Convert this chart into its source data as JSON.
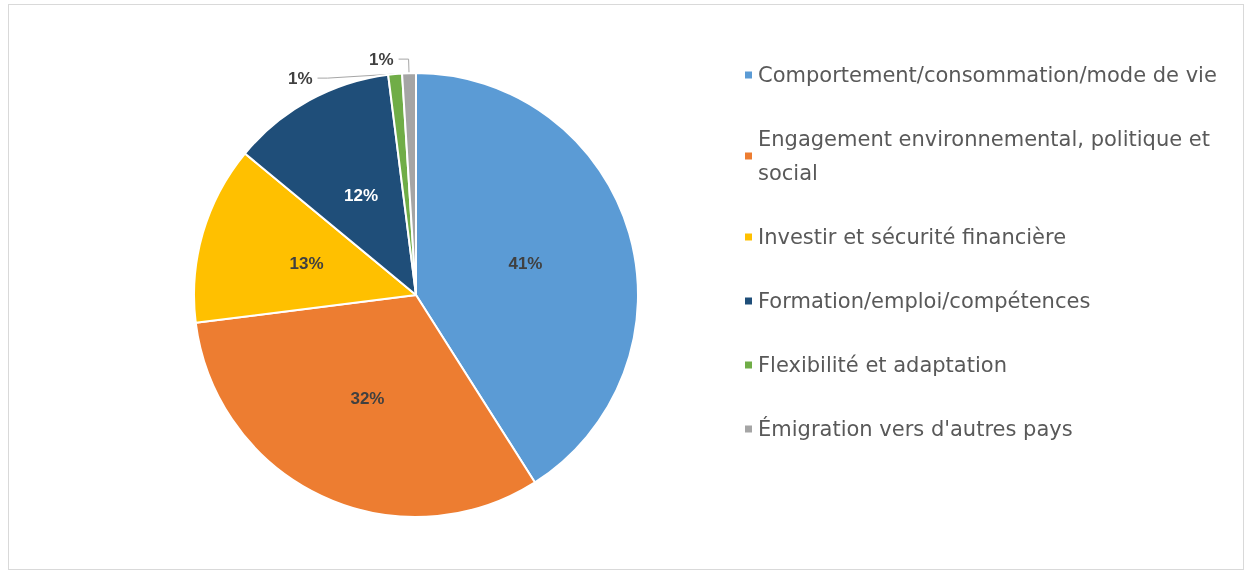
{
  "chart_data": {
    "type": "pie",
    "categories": [
      "Comportement/consommation/mode de vie",
      "Engagement environnemental, politique et social",
      "Investir et sécurité financière",
      "Formation/emploi/compétences",
      "Flexibilité et adaptation",
      "Émigration vers d'autres pays"
    ],
    "values": [
      41,
      32,
      13,
      12,
      1,
      1
    ],
    "colors": [
      "#5b9bd5",
      "#ed7d31",
      "#ffc000",
      "#1f4e79",
      "#70ad47",
      "#a5a5a5"
    ],
    "value_labels": [
      "41%",
      "32%",
      "13%",
      "12%",
      "1%",
      "1%"
    ],
    "legend": "right"
  }
}
